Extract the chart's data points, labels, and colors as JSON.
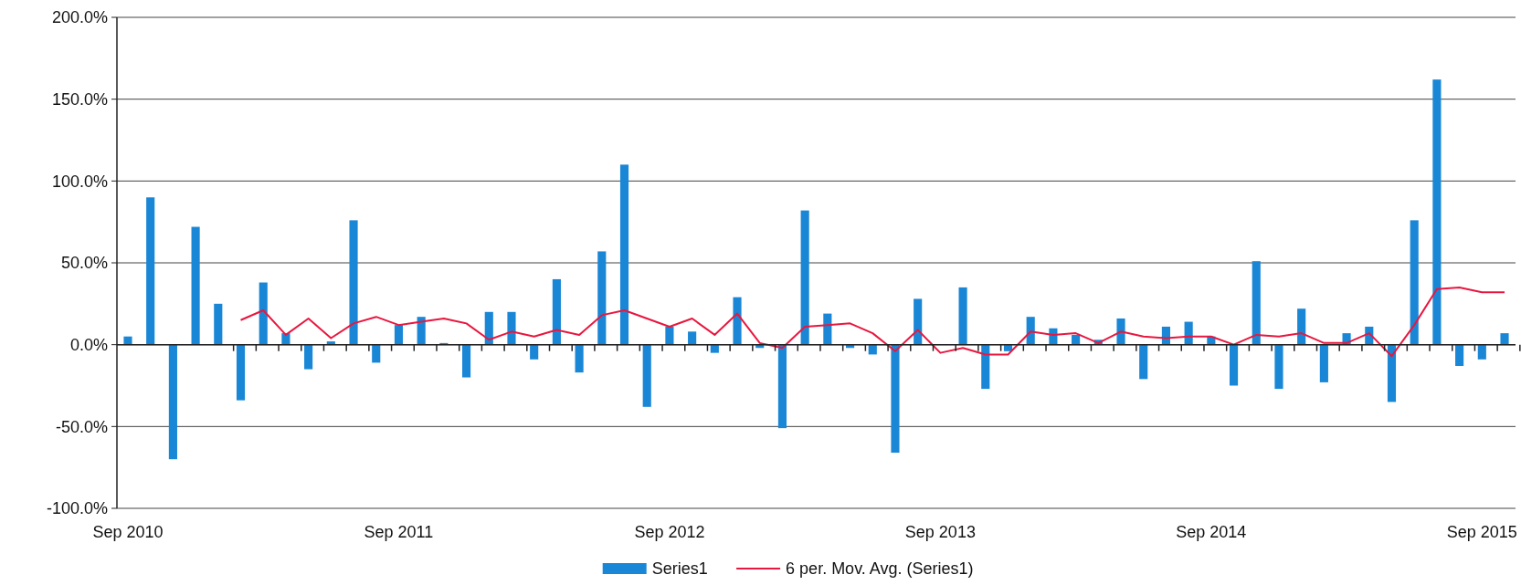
{
  "chart_data": {
    "type": "bar",
    "categories": [
      "Sep 2010",
      null,
      null,
      null,
      null,
      null,
      null,
      null,
      null,
      null,
      null,
      null,
      "Sep 2011",
      null,
      null,
      null,
      null,
      null,
      null,
      null,
      null,
      null,
      null,
      null,
      "Sep 2012",
      null,
      null,
      null,
      null,
      null,
      null,
      null,
      null,
      null,
      null,
      null,
      "Sep 2013",
      null,
      null,
      null,
      null,
      null,
      null,
      null,
      null,
      null,
      null,
      null,
      "Sep 2014",
      null,
      null,
      null,
      null,
      null,
      null,
      null,
      null,
      null,
      null,
      null,
      "Sep 2015",
      null
    ],
    "series": [
      {
        "name": "Series1",
        "color": "#1a87d6",
        "values": [
          5,
          90,
          -70,
          72,
          25,
          -34,
          38,
          7,
          -15,
          2,
          76,
          -11,
          12,
          17,
          1,
          -20,
          20,
          20,
          -9,
          40,
          -17,
          57,
          110,
          -38,
          11,
          8,
          -5,
          29,
          -2,
          -51,
          82,
          19,
          -2,
          -6,
          -66,
          28,
          0,
          35,
          -27,
          -4,
          17,
          10,
          6,
          3,
          16,
          -21,
          11,
          14,
          5,
          -25,
          51,
          -27,
          22,
          -23,
          7,
          11,
          -35,
          76,
          162,
          -13,
          -9,
          7
        ]
      },
      {
        "name": "6 per. Mov. Avg. (Series1)",
        "type": "line",
        "color": "#e8173f",
        "values": [
          null,
          null,
          null,
          null,
          null,
          15,
          21,
          6,
          16,
          4,
          13,
          17,
          12,
          14,
          16,
          13,
          3,
          8,
          5,
          9,
          6,
          18,
          21,
          16,
          11,
          16,
          6,
          19,
          1,
          -2,
          11,
          12,
          13,
          7,
          -4,
          9,
          -5,
          -2,
          -6,
          -6,
          8,
          6,
          7,
          1,
          8,
          5,
          4,
          5,
          5,
          0,
          6,
          5,
          7,
          1,
          1,
          7,
          -7,
          12,
          34,
          35,
          32,
          32
        ]
      }
    ],
    "ylim": [
      -100,
      200
    ],
    "yticks": [
      {
        "value": -100,
        "label": "-100.0%"
      },
      {
        "value": -50,
        "label": "-50.0%"
      },
      {
        "value": 0,
        "label": "0.0%"
      },
      {
        "value": 50,
        "label": "50.0%"
      },
      {
        "value": 100,
        "label": "100.0%"
      },
      {
        "value": 150,
        "label": "150.0%"
      },
      {
        "value": 200,
        "label": "200.0%"
      }
    ],
    "grid": "y",
    "legend": "bottom"
  }
}
